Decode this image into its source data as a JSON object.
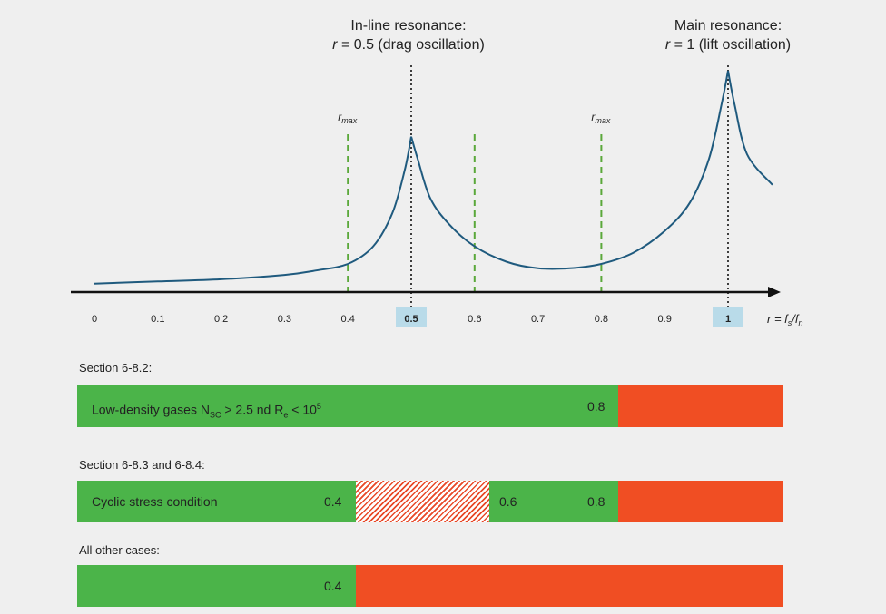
{
  "annotations": {
    "inline_title": "In-line resonance:",
    "inline_sub": "r = 0.5 (drag oscillation)",
    "main_title": "Main resonance:",
    "main_sub": "r = 1 (lift oscillation)",
    "rmax_label": "r",
    "rmax_subscript": "max",
    "axis_label": "r = fs/fn"
  },
  "chart_data": {
    "type": "line",
    "x_ticks": [
      "0",
      "0.1",
      "0.2",
      "0.3",
      "0.4",
      "0.5",
      "0.6",
      "0.7",
      "0.8",
      "0.9",
      "1"
    ],
    "highlighted_ticks": [
      "0.5",
      "1"
    ],
    "xlim": [
      0,
      1.07
    ],
    "green_dashed_markers": [
      0.4,
      0.6,
      0.8
    ],
    "black_dotted_markers": [
      0.5,
      1.0
    ],
    "rmax_markers": [
      0.4,
      0.8
    ],
    "curve": {
      "description_points_x": [
        0.0,
        0.1,
        0.2,
        0.3,
        0.35,
        0.4,
        0.44,
        0.47,
        0.49,
        0.5,
        0.51,
        0.53,
        0.56,
        0.6,
        0.65,
        0.7,
        0.75,
        0.8,
        0.85,
        0.9,
        0.94,
        0.97,
        0.99,
        1.0,
        1.01,
        1.03,
        1.07
      ],
      "relative_y": [
        0.03,
        0.04,
        0.05,
        0.07,
        0.09,
        0.12,
        0.2,
        0.35,
        0.55,
        0.7,
        0.6,
        0.42,
        0.3,
        0.2,
        0.13,
        0.1,
        0.1,
        0.12,
        0.17,
        0.27,
        0.4,
        0.6,
        0.85,
        1.0,
        0.85,
        0.62,
        0.48
      ]
    },
    "color": "#1f5a7e"
  },
  "sections": [
    {
      "label": "Section 6-8.2:",
      "bar_text": "Low-density gases",
      "bar_text_formula": "NSC > 2.5 nd Re < 105",
      "green_end": 0.8,
      "values": [
        {
          "x": 0.8,
          "text": "0.8"
        }
      ]
    },
    {
      "label": "Section 6-8.3 and 6-8.4:",
      "bar_text": "Cyclic stress condition",
      "green_end": 0.8,
      "hatch_range": [
        0.4,
        0.6
      ],
      "values": [
        {
          "x": 0.4,
          "text": "0.4"
        },
        {
          "x": 0.6,
          "text": "0.6"
        },
        {
          "x": 0.8,
          "text": "0.8"
        }
      ]
    },
    {
      "label": "All other cases:",
      "bar_text": "",
      "green_end": 0.4,
      "values": [
        {
          "x": 0.4,
          "text": "0.4"
        }
      ]
    }
  ],
  "colors": {
    "green": "#4bb449",
    "red": "#f04e23",
    "tick_highlight": "#b9dbe9",
    "dashed_green": "#5aa83a"
  }
}
